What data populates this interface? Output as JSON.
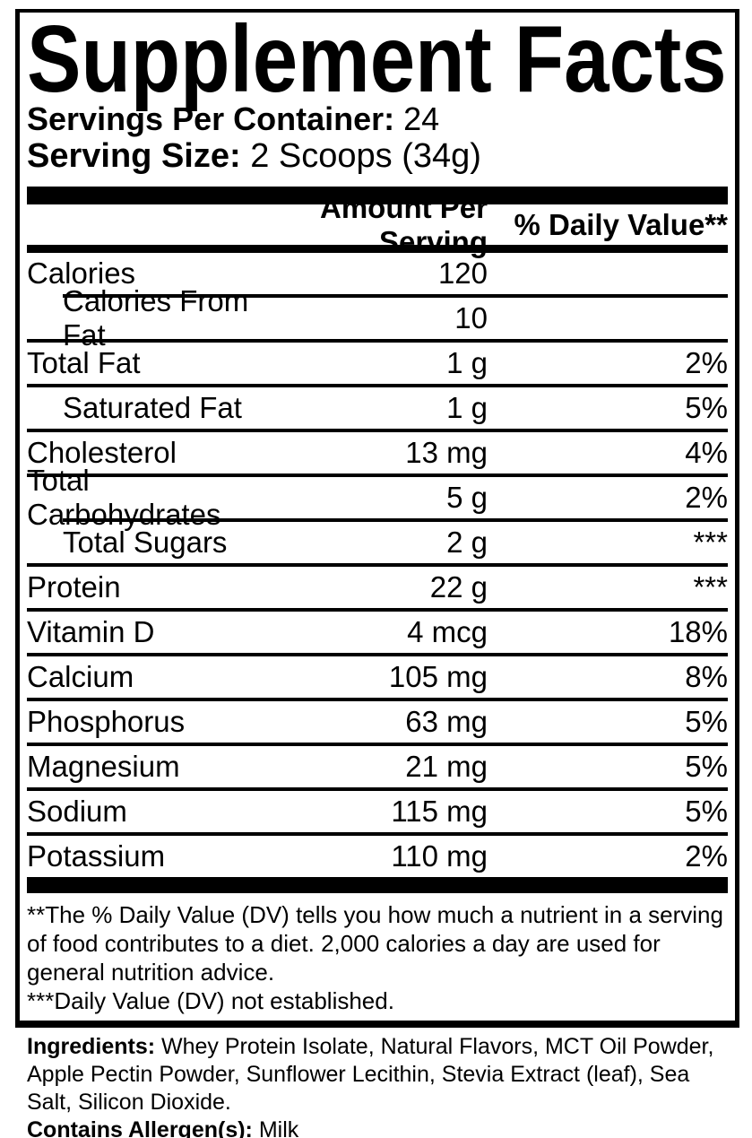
{
  "title": "Supplement Facts",
  "servings": {
    "label": "Servings Per Container:",
    "value": "24"
  },
  "serving_size": {
    "label": "Serving Size:",
    "value": "2 Scoops (34g)"
  },
  "table": {
    "headers": {
      "amount": "Amount Per Serving",
      "dv": "% Daily Value**"
    },
    "rows": [
      {
        "label": "Calories",
        "amount": "120",
        "dv": ""
      },
      {
        "label": "Calories From Fat",
        "amount": "10",
        "dv": ""
      },
      {
        "label": "Total Fat",
        "amount": "1 g",
        "dv": "2%"
      },
      {
        "label": "Saturated Fat",
        "amount": "1 g",
        "dv": "5%"
      },
      {
        "label": "Cholesterol",
        "amount": "13 mg",
        "dv": "4%"
      },
      {
        "label": "Total Carbohydrates",
        "amount": "5 g",
        "dv": "2%"
      },
      {
        "label": "Total Sugars",
        "amount": "2 g",
        "dv": "***"
      },
      {
        "label": "Protein",
        "amount": "22 g",
        "dv": "***"
      },
      {
        "label": "Vitamin D",
        "amount": "4 mcg",
        "dv": "18%"
      },
      {
        "label": "Calcium",
        "amount": "105 mg",
        "dv": "8%"
      },
      {
        "label": "Phosphorus",
        "amount": "63 mg",
        "dv": "5%"
      },
      {
        "label": "Magnesium",
        "amount": "21 mg",
        "dv": "5%"
      },
      {
        "label": "Sodium",
        "amount": "115 mg",
        "dv": "5%"
      },
      {
        "label": "Potassium",
        "amount": "110 mg",
        "dv": "2%"
      }
    ]
  },
  "footnotes": {
    "dv_note": "**The % Daily Value (DV) tells you how much a nutrient in a serving of food contributes to a diet. 2,000 calories a day are used for general nutrition advice.",
    "not_established_note": "***Daily Value (DV) not established."
  },
  "ingredients": {
    "label": "Ingredients:",
    "lines": [
      "Whey Protein Isolate, Natural Flavors, MCT Oil Powder,",
      "Apple Pectin Powder, Sunflower Lecithin, Stevia Extract (leaf), Sea",
      "Salt, Silicon Dioxide."
    ]
  },
  "allergen": {
    "label": "Contains Allergen(s):",
    "value": "Milk"
  },
  "colors": {
    "text": "#000000",
    "background": "#ffffff"
  }
}
